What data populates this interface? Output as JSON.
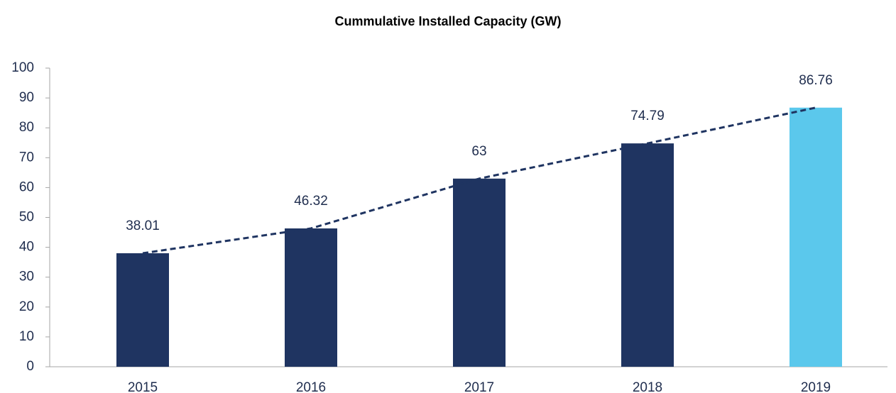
{
  "chart_data": {
    "type": "bar",
    "title": "Cummulative Installed Capacity (GW)",
    "categories": [
      "2015",
      "2016",
      "2017",
      "2018",
      "2019"
    ],
    "values": [
      38.01,
      46.32,
      63,
      74.79,
      86.76
    ],
    "colors": [
      "#1f3461",
      "#1f3461",
      "#1f3461",
      "#1f3461",
      "#5bc8ec"
    ],
    "trendline": {
      "color": "#1f3461",
      "dashed": true
    },
    "ylim": [
      0,
      100
    ],
    "yticks": [
      0,
      10,
      20,
      30,
      40,
      50,
      60,
      70,
      80,
      90,
      100
    ],
    "grid": false
  }
}
